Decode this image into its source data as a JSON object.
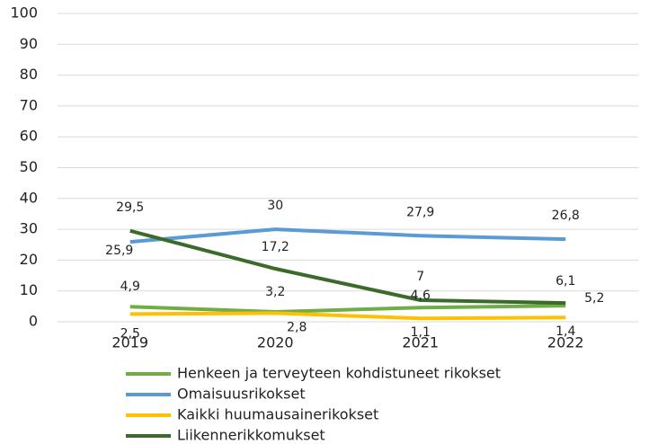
{
  "chart_data": {
    "type": "line",
    "categories": [
      "2019",
      "2020",
      "2021",
      "2022"
    ],
    "series": [
      {
        "name": "Henkeen ja terveyteen kohdistuneet rikokset",
        "color": "#70ad47",
        "values": [
          4.9,
          3.2,
          4.6,
          5.2
        ],
        "value_labels": [
          "4,9",
          "3,2",
          "4,6",
          "5,2"
        ]
      },
      {
        "name": "Omaisuusrikokset",
        "color": "#5b9bd5",
        "values": [
          25.9,
          30,
          27.9,
          26.8
        ],
        "value_labels": [
          "25,9",
          "30",
          "27,9",
          "26,8"
        ]
      },
      {
        "name": "Kaikki huumausainerikokset",
        "color": "#ffc000",
        "values": [
          2.5,
          2.8,
          1.1,
          1.4
        ],
        "value_labels": [
          "2,5",
          "2,8",
          "1,1",
          "1,4"
        ]
      },
      {
        "name": "Liikennerikkomukset",
        "color": "#3a6b2a",
        "values": [
          29.5,
          17.2,
          7,
          6.1
        ],
        "value_labels": [
          "29,5",
          "17,2",
          "7",
          "6,1"
        ]
      }
    ],
    "ylim": [
      0,
      100
    ],
    "yticks": [
      0,
      10,
      20,
      30,
      40,
      50,
      60,
      70,
      80,
      90,
      100
    ],
    "grid": true
  }
}
